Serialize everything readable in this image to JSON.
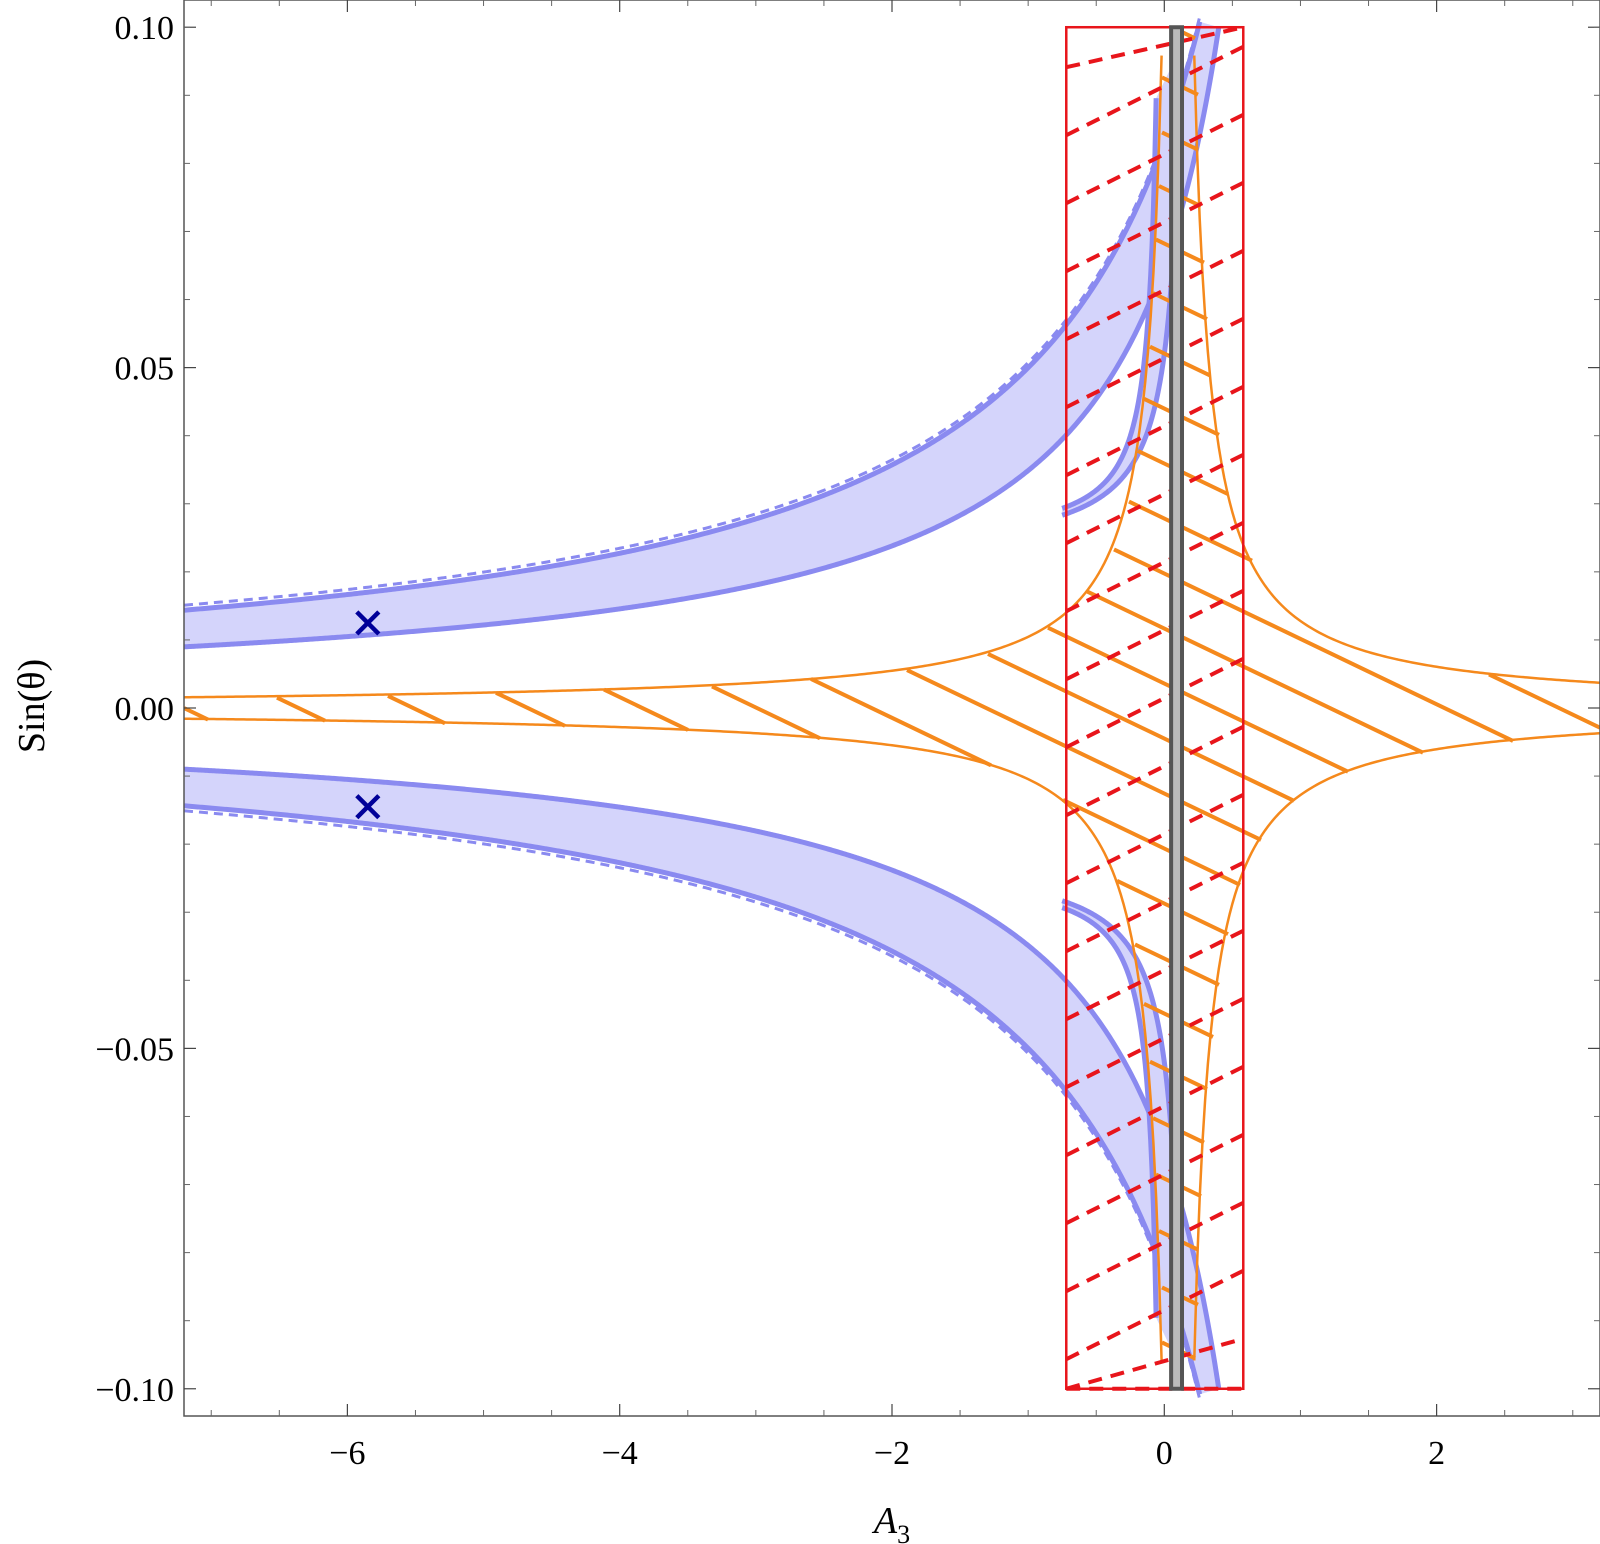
{
  "chart_data": {
    "type": "scatter",
    "title": "",
    "xlabel": "A3",
    "xlabel_main": "A",
    "xlabel_sub": "3",
    "ylabel": "Sin(θ)",
    "xlim": [
      -7.2,
      3.2
    ],
    "ylim": [
      -0.104,
      0.104
    ],
    "x_ticks": [
      -6,
      -4,
      -2,
      0,
      2
    ],
    "x_tick_labels": [
      "−6",
      "−4",
      "−2",
      "0",
      "2"
    ],
    "y_ticks": [
      -0.1,
      -0.05,
      0.0,
      0.05,
      0.1
    ],
    "y_tick_labels": [
      "−0.10",
      "−0.05",
      "0.00",
      "0.05",
      "0.10"
    ],
    "grid": false,
    "colors": {
      "band_fill": "#d4d4fb",
      "band_edge": "#8a8af0",
      "orange": "#f5891c",
      "red": "#e8151b",
      "gray": "#555555",
      "marker": "#000099"
    },
    "blue_bands": [
      {
        "name": "",
        "region": "upper-left/upper-right hyperbola",
        "a": 0.016,
        "b": 0.024,
        "x0": 0.95
      },
      {
        "name": "",
        "region": "lower-left/lower-right hyperbola",
        "a": -0.016,
        "b": -0.024,
        "x0": 0.95
      }
    ],
    "orange_region": {
      "name": "",
      "hatched": true,
      "x_center": 0.1
    },
    "red_box": {
      "name": "",
      "x_range": [
        -0.72,
        0.58
      ],
      "y_range": [
        -0.1,
        0.1
      ],
      "hatch": "dashed"
    },
    "gray_band": {
      "name": "",
      "x_range": [
        0.05,
        0.13
      ],
      "y_range": [
        -0.1,
        0.1
      ]
    },
    "markers": [
      {
        "x": -5.85,
        "y": 0.0125,
        "symbol": "×"
      },
      {
        "x": -5.85,
        "y": -0.0145,
        "symbol": "×"
      }
    ]
  }
}
